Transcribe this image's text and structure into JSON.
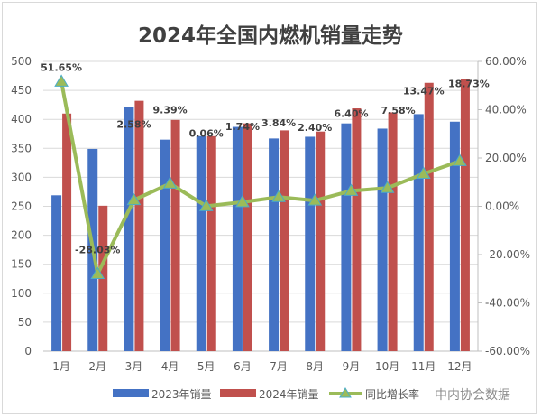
{
  "chart_data": {
    "type": "bar+line",
    "title": "2024年全国内燃机销量走势",
    "categories": [
      "1月",
      "2月",
      "3月",
      "4月",
      "5月",
      "6月",
      "7月",
      "8月",
      "9月",
      "10月",
      "11月",
      "12月"
    ],
    "series": [
      {
        "name": "2023年销量",
        "type": "bar",
        "axis": "left",
        "color": "#4472c4",
        "values": [
          269,
          349,
          421,
          365,
          371,
          387,
          367,
          370,
          393,
          384,
          409,
          396
        ]
      },
      {
        "name": "2024年销量",
        "type": "bar",
        "axis": "left",
        "color": "#c0504d",
        "values": [
          410,
          251,
          432,
          399,
          371,
          393,
          381,
          379,
          419,
          412,
          463,
          470
        ]
      },
      {
        "name": "同比增长率",
        "type": "line",
        "axis": "right",
        "color": "#9bbb59",
        "values": [
          51.65,
          -28.03,
          2.58,
          9.39,
          0.06,
          1.74,
          3.84,
          2.4,
          6.4,
          7.58,
          13.47,
          18.73
        ],
        "labels": [
          "51.65%",
          "-28.03%",
          "2.58%",
          "9.39%",
          "0.06%",
          "1.74%",
          "3.84%",
          "2.40%",
          "6.40%",
          "7.58%",
          "13.47%",
          "18.73%"
        ]
      }
    ],
    "y_left": {
      "range": [
        0,
        500
      ],
      "ticks": [
        "0",
        "50",
        "100",
        "150",
        "200",
        "250",
        "300",
        "350",
        "400",
        "450",
        "500"
      ]
    },
    "y_right": {
      "range": [
        -60,
        60
      ],
      "ticks": [
        "-60.00%",
        "-40.00%",
        "-20.00%",
        "0.00%",
        "20.00%",
        "40.00%",
        "60.00%"
      ]
    },
    "grid": true,
    "legend": "bottom",
    "source_note": "中内协会数据"
  }
}
